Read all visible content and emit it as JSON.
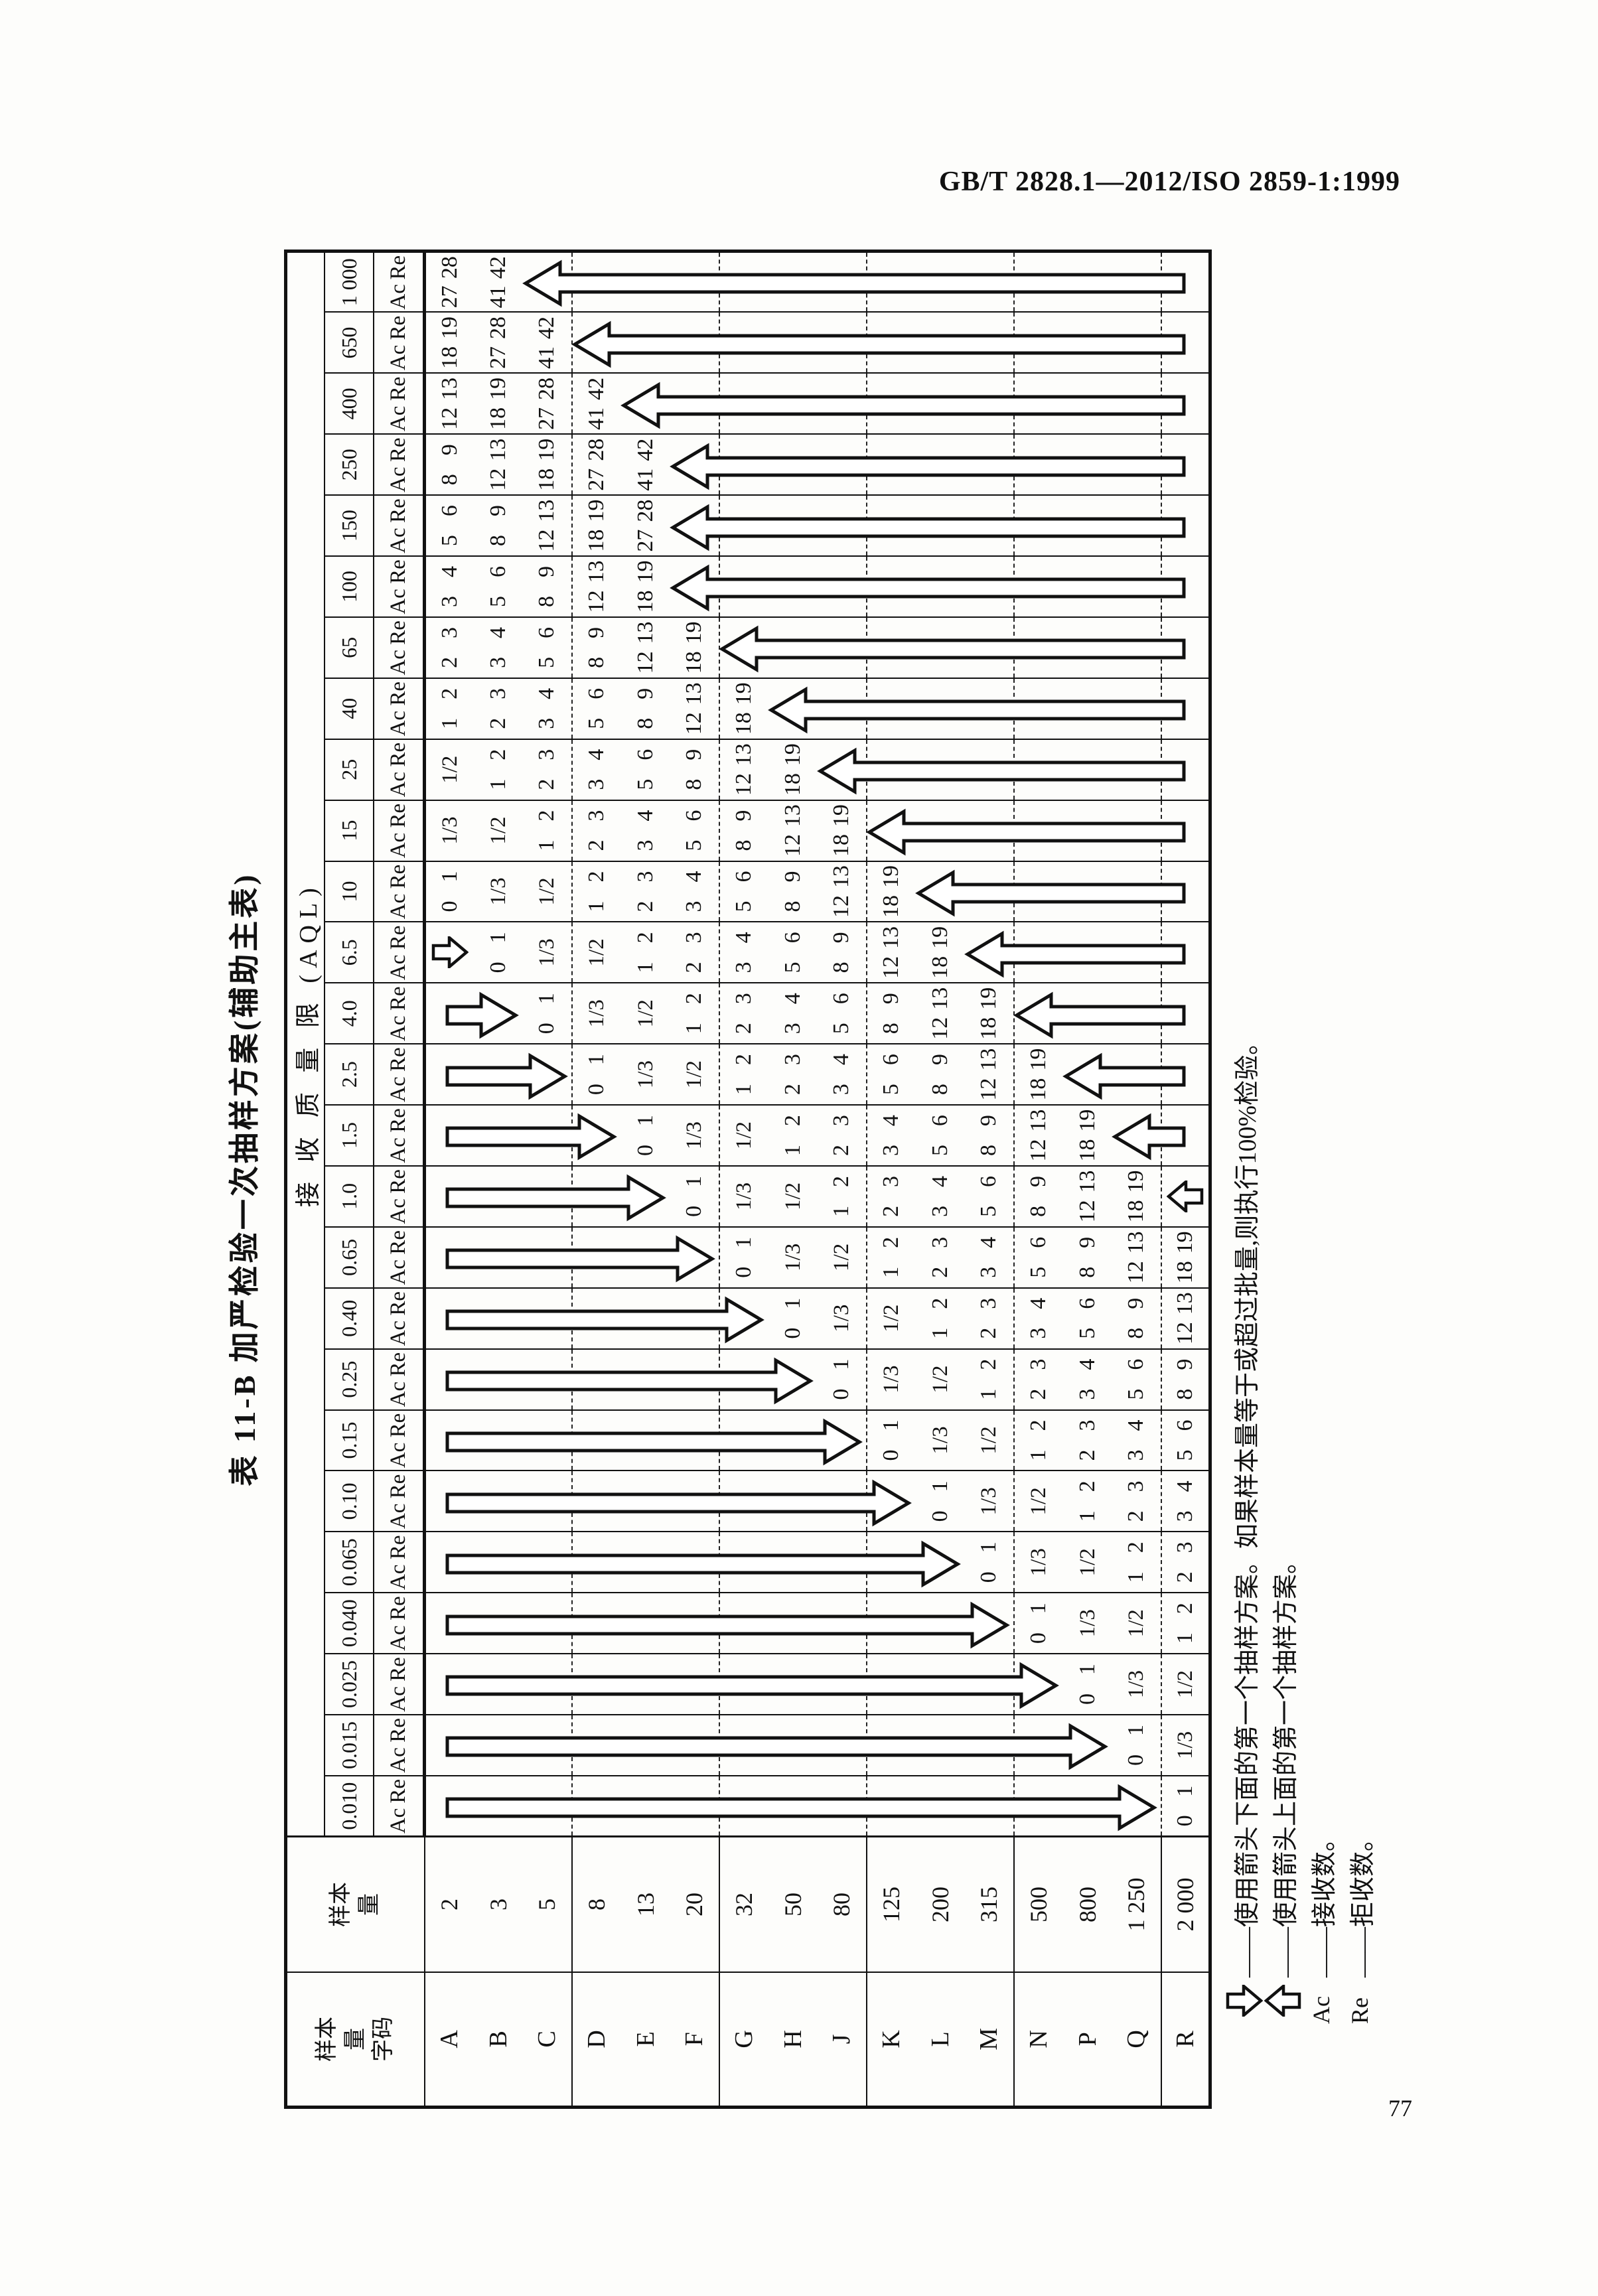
{
  "page": {
    "header": "GB/T 2828.1—2012/ISO 2859-1:1999",
    "page_number": "77"
  },
  "title": "表 11-B  加严检验一次抽样方案(辅助主表)",
  "table": {
    "col1_header": "样本\n量\n字码",
    "col2_header": "样本\n量",
    "aql_header": "接 收 质 量 限 (AQL)",
    "ac_label": "Ac",
    "re_label": "Re",
    "codes": [
      "A",
      "B",
      "C",
      "D",
      "E",
      "F",
      "G",
      "H",
      "J",
      "K",
      "L",
      "M",
      "N",
      "P",
      "Q",
      "R"
    ],
    "sizes": [
      "2",
      "3",
      "5",
      "8",
      "13",
      "20",
      "32",
      "50",
      "80",
      "125",
      "200",
      "315",
      "500",
      "800",
      "1 250",
      "2 000"
    ],
    "columns": [
      {
        "aql": "0.010",
        "down": [
          "A",
          "Q"
        ],
        "cells": {
          "R": "0 1"
        }
      },
      {
        "aql": "0.015",
        "down": [
          "A",
          "P"
        ],
        "cells": {
          "Q": "0 1",
          "R": "1/3"
        }
      },
      {
        "aql": "0.025",
        "down": [
          "A",
          "N"
        ],
        "cells": {
          "P": "0 1",
          "Q": "1/3",
          "R": "1/2"
        }
      },
      {
        "aql": "0.040",
        "down": [
          "A",
          "M"
        ],
        "cells": {
          "N": "0 1",
          "P": "1/3",
          "Q": "1/2",
          "R": "1 2"
        }
      },
      {
        "aql": "0.065",
        "down": [
          "A",
          "L"
        ],
        "cells": {
          "M": "0 1",
          "N": "1/3",
          "P": "1/2",
          "Q": "1 2",
          "R": "2 3"
        }
      },
      {
        "aql": "0.10",
        "down": [
          "A",
          "K"
        ],
        "cells": {
          "L": "0 1",
          "M": "1/3",
          "N": "1/2",
          "P": "1 2",
          "Q": "2 3",
          "R": "3 4"
        }
      },
      {
        "aql": "0.15",
        "down": [
          "A",
          "J"
        ],
        "cells": {
          "K": "0 1",
          "L": "1/3",
          "M": "1/2",
          "N": "1 2",
          "P": "2 3",
          "Q": "3 4",
          "R": "5 6"
        }
      },
      {
        "aql": "0.25",
        "down": [
          "A",
          "H"
        ],
        "cells": {
          "J": "0 1",
          "K": "1/3",
          "L": "1/2",
          "M": "1 2",
          "N": "2 3",
          "P": "3 4",
          "Q": "5 6",
          "R": "8 9"
        }
      },
      {
        "aql": "0.40",
        "down": [
          "A",
          "G"
        ],
        "cells": {
          "H": "0 1",
          "J": "1/3",
          "K": "1/2",
          "L": "1 2",
          "M": "2 3",
          "N": "3 4",
          "P": "5 6",
          "Q": "8 9",
          "R": "12 13"
        }
      },
      {
        "aql": "0.65",
        "down": [
          "A",
          "F"
        ],
        "cells": {
          "G": "0 1",
          "H": "1/3",
          "J": "1/2",
          "K": "1 2",
          "L": "2 3",
          "M": "3 4",
          "N": "5 6",
          "P": "8 9",
          "Q": "12 13",
          "R": "18 19"
        }
      },
      {
        "aql": "1.0",
        "down": [
          "A",
          "E"
        ],
        "up_small": "R",
        "cells": {
          "F": "0 1",
          "G": "1/3",
          "H": "1/2",
          "J": "1 2",
          "K": "2 3",
          "L": "3 4",
          "M": "5 6",
          "N": "8 9",
          "P": "12 13",
          "Q": "18 19"
        }
      },
      {
        "aql": "1.5",
        "down": [
          "A",
          "D"
        ],
        "up": [
          "Q",
          "R"
        ],
        "cells": {
          "E": "0 1",
          "F": "1/3",
          "G": "1/2",
          "H": "1 2",
          "J": "2 3",
          "K": "3 4",
          "L": "5 6",
          "M": "8 9",
          "N": "12 13",
          "P": "18 19"
        }
      },
      {
        "aql": "2.5",
        "down": [
          "A",
          "C"
        ],
        "up": [
          "P",
          "R"
        ],
        "cells": {
          "D": "0 1",
          "E": "1/3",
          "F": "1/2",
          "G": "1 2",
          "H": "2 3",
          "J": "3 4",
          "K": "5 6",
          "L": "8 9",
          "M": "12 13",
          "N": "18 19"
        }
      },
      {
        "aql": "4.0",
        "down": [
          "A",
          "B"
        ],
        "up": [
          "N",
          "R"
        ],
        "cells": {
          "C": "0 1",
          "D": "1/3",
          "E": "1/2",
          "F": "1 2",
          "G": "2 3",
          "H": "3 4",
          "J": "5 6",
          "K": "8 9",
          "L": "12 13",
          "M": "18 19"
        }
      },
      {
        "aql": "6.5",
        "down_small": "A",
        "up": [
          "M",
          "R"
        ],
        "cells": {
          "B": "0 1",
          "C": "1/3",
          "D": "1/2",
          "E": "1 2",
          "F": "2 3",
          "G": "3 4",
          "H": "5 6",
          "J": "8 9",
          "K": "12 13",
          "L": "18 19"
        }
      },
      {
        "aql": "10",
        "up": [
          "L",
          "R"
        ],
        "cells": {
          "A": "0 1",
          "B": "1/3",
          "C": "1/2",
          "D": "1 2",
          "E": "2 3",
          "F": "3 4",
          "G": "5 6",
          "H": "8 9",
          "J": "12 13",
          "K": "18 19"
        }
      },
      {
        "aql": "15",
        "up": [
          "K",
          "R"
        ],
        "cells": {
          "A": "1/3",
          "B": "1/2",
          "C": "1 2",
          "D": "2 3",
          "E": "3 4",
          "F": "5 6",
          "G": "8 9",
          "H": "12 13",
          "J": "18 19"
        }
      },
      {
        "aql": "25",
        "up": [
          "J",
          "R"
        ],
        "cells": {
          "A": "1/2",
          "B": "1 2",
          "C": "2 3",
          "D": "3 4",
          "E": "5 6",
          "F": "8 9",
          "G": "12 13",
          "H": "18 19"
        }
      },
      {
        "aql": "40",
        "up": [
          "H",
          "R"
        ],
        "cells": {
          "A": "1 2",
          "B": "2 3",
          "C": "3 4",
          "D": "5 6",
          "E": "8 9",
          "F": "12 13",
          "G": "18 19"
        }
      },
      {
        "aql": "65",
        "up": [
          "G",
          "R"
        ],
        "cells": {
          "A": "2 3",
          "B": "3 4",
          "C": "5 6",
          "D": "8 9",
          "E": "12 13",
          "F": "18 19"
        }
      },
      {
        "aql": "100",
        "up": [
          "F",
          "R"
        ],
        "cells": {
          "A": "3 4",
          "B": "5 6",
          "C": "8 9",
          "D": "12 13",
          "E": "18 19"
        }
      },
      {
        "aql": "150",
        "up": [
          "F",
          "R"
        ],
        "cells": {
          "A": "5 6",
          "B": "8 9",
          "C": "12 13",
          "D": "18 19",
          "E": "27 28"
        }
      },
      {
        "aql": "250",
        "up": [
          "F",
          "R"
        ],
        "cells": {
          "A": "8 9",
          "B": "12 13",
          "C": "18 19",
          "D": "27 28",
          "E": "41 42"
        }
      },
      {
        "aql": "400",
        "up": [
          "E",
          "R"
        ],
        "cells": {
          "A": "12 13",
          "B": "18 19",
          "C": "27 28",
          "D": "41 42"
        }
      },
      {
        "aql": "650",
        "up": [
          "D",
          "R"
        ],
        "cells": {
          "A": "18 19",
          "B": "27 28",
          "C": "41 42"
        }
      },
      {
        "aql": "1 000",
        "up": [
          "C",
          "R"
        ],
        "cells": {
          "A": "27 28",
          "B": "41 42"
        }
      }
    ]
  },
  "legend": {
    "down_text": "——使用箭头下面的第一个抽样方案。如果样本量等于或超过批量,则执行100%检验。",
    "up_text": "——使用箭头上面的第一个抽样方案。",
    "ac_prefix": "Ac",
    "ac_text": "——接收数。",
    "re_prefix": "Re",
    "re_text": "——拒收数。"
  }
}
